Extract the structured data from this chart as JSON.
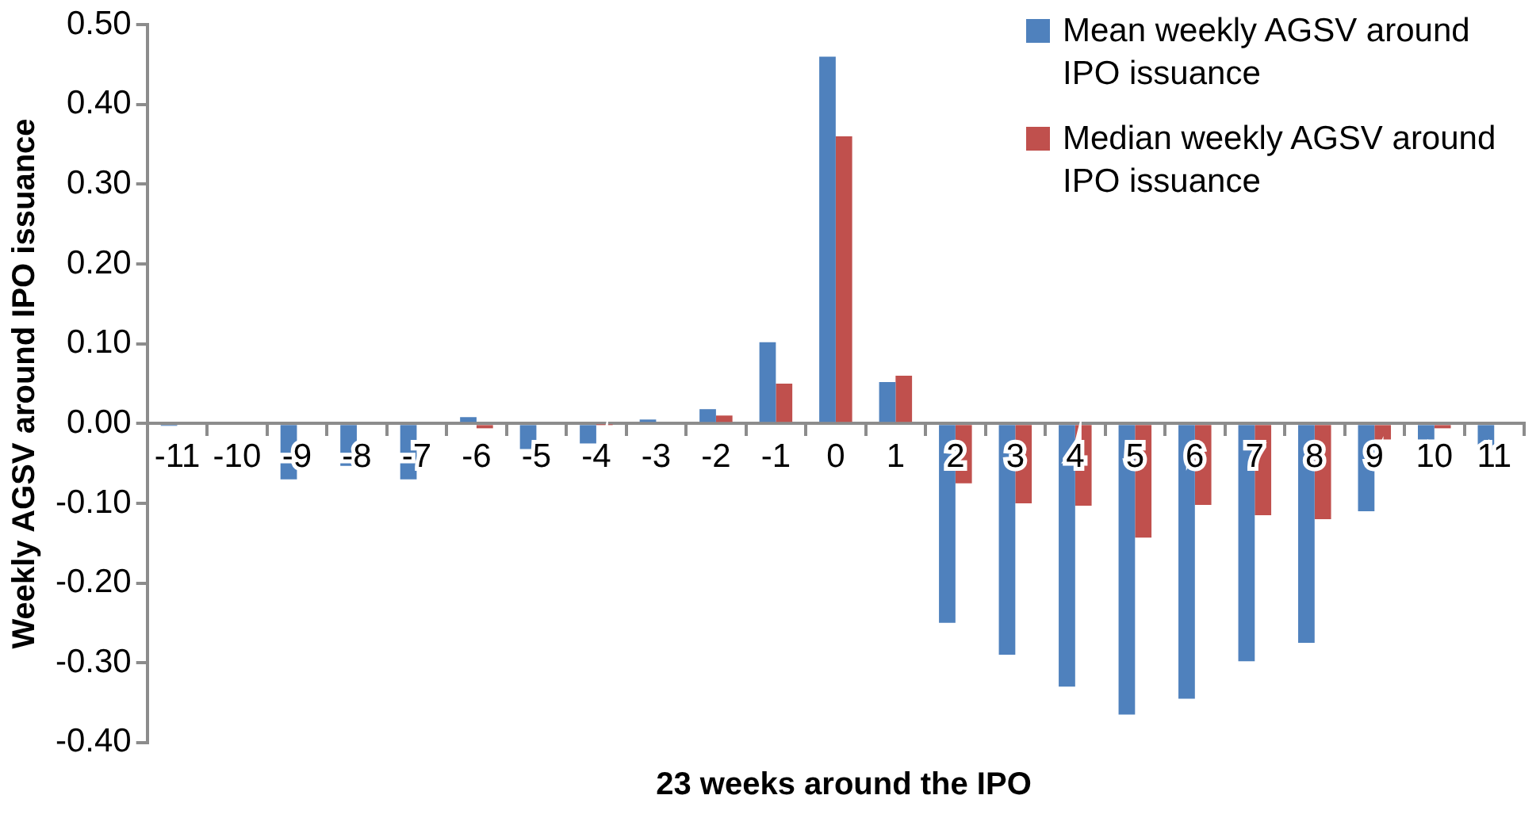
{
  "chart_data": {
    "type": "bar",
    "xlabel": "23 weeks around the IPO",
    "ylabel": "Weekly AGSV around IPO issuance",
    "categories": [
      "-11",
      "-10",
      "-9",
      "-8",
      "-7",
      "-6",
      "-5",
      "-4",
      "-3",
      "-2",
      "-1",
      "0",
      "1",
      "2",
      "3",
      "4",
      "5",
      "6",
      "7",
      "8",
      "9",
      "10",
      "11"
    ],
    "series": [
      {
        "name": "Mean weekly AGSV around IPO issuance",
        "color": "#4f81bd",
        "values": [
          -0.003,
          0.002,
          -0.07,
          -0.053,
          -0.07,
          0.008,
          -0.032,
          -0.025,
          0.005,
          0.018,
          0.102,
          0.46,
          0.052,
          -0.25,
          -0.29,
          -0.33,
          -0.365,
          -0.345,
          -0.298,
          -0.275,
          -0.11,
          -0.02,
          -0.033
        ]
      },
      {
        "name": "Median weekly AGSV around IPO issuance",
        "color": "#c0504d",
        "values": [
          0,
          0,
          0,
          0,
          0,
          -0.006,
          0,
          -0.001,
          0,
          0.01,
          0.05,
          0.36,
          0.06,
          -0.075,
          -0.1,
          -0.103,
          -0.143,
          -0.102,
          -0.115,
          -0.12,
          -0.02,
          -0.006,
          0
        ]
      }
    ],
    "ylim": [
      -0.4,
      0.5
    ],
    "yticks": [
      {
        "value": -0.4,
        "label": "-0.40"
      },
      {
        "value": -0.3,
        "label": "-0.30"
      },
      {
        "value": -0.2,
        "label": "-0.20"
      },
      {
        "value": -0.1,
        "label": "-0.10"
      },
      {
        "value": 0,
        "label": "0.00"
      },
      {
        "value": 0.1,
        "label": "0.10"
      },
      {
        "value": 0.2,
        "label": "0.20"
      },
      {
        "value": 0.3,
        "label": "0.30"
      },
      {
        "value": 0.4,
        "label": "0.40"
      },
      {
        "value": 0.5,
        "label": "0.50"
      }
    ],
    "grid": false,
    "legend": "top right"
  }
}
